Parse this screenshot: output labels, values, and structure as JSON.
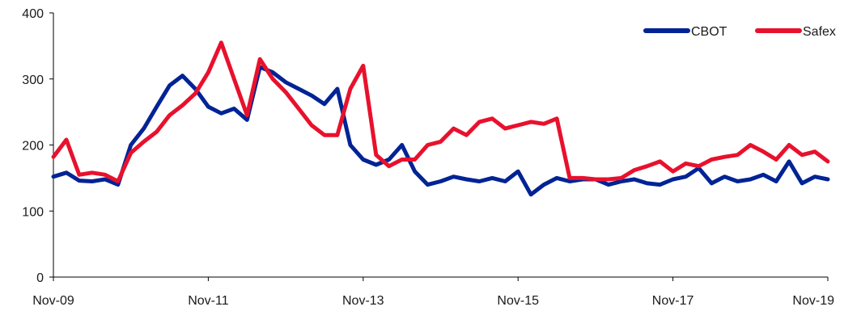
{
  "chart_data": {
    "type": "line",
    "title": "",
    "xlabel": "",
    "ylabel": "",
    "x_ticks": [
      "Nov-09",
      "Nov-11",
      "Nov-13",
      "Nov-15",
      "Nov-17",
      "Nov-19"
    ],
    "y_ticks": [
      "0",
      "100",
      "200",
      "300",
      "400"
    ],
    "xlim": [
      "2009-11",
      "2019-11"
    ],
    "ylim": [
      0,
      400
    ],
    "grid": false,
    "legend_position": "top-right",
    "series": [
      {
        "name": "CBOT",
        "color": "#002395",
        "x": [
          "2009-11",
          "2010-01",
          "2010-03",
          "2010-05",
          "2010-07",
          "2010-09",
          "2010-11",
          "2011-01",
          "2011-03",
          "2011-05",
          "2011-07",
          "2011-09",
          "2011-11",
          "2012-01",
          "2012-03",
          "2012-05",
          "2012-07",
          "2012-09",
          "2012-11",
          "2013-01",
          "2013-03",
          "2013-05",
          "2013-07",
          "2013-09",
          "2013-11",
          "2014-01",
          "2014-03",
          "2014-05",
          "2014-07",
          "2014-09",
          "2014-11",
          "2015-01",
          "2015-03",
          "2015-05",
          "2015-07",
          "2015-09",
          "2015-11",
          "2016-01",
          "2016-03",
          "2016-05",
          "2016-07",
          "2016-09",
          "2016-11",
          "2017-01",
          "2017-03",
          "2017-05",
          "2017-07",
          "2017-09",
          "2017-11",
          "2018-01",
          "2018-03",
          "2018-05",
          "2018-07",
          "2018-09",
          "2018-11",
          "2019-01",
          "2019-03",
          "2019-05",
          "2019-07",
          "2019-09",
          "2019-11"
        ],
        "values": [
          152,
          158,
          146,
          145,
          148,
          140,
          200,
          225,
          258,
          290,
          305,
          285,
          258,
          248,
          255,
          238,
          318,
          310,
          295,
          285,
          275,
          262,
          285,
          200,
          178,
          170,
          178,
          200,
          160,
          140,
          145,
          152,
          148,
          145,
          150,
          145,
          160,
          125,
          140,
          150,
          145,
          148,
          148,
          140,
          145,
          148,
          142,
          140,
          148,
          152,
          165,
          142,
          152,
          145,
          148,
          155,
          145,
          175,
          142,
          152,
          148
        ]
      },
      {
        "name": "Safex",
        "color": "#e8112d",
        "x": [
          "2009-11",
          "2010-01",
          "2010-03",
          "2010-05",
          "2010-07",
          "2010-09",
          "2010-11",
          "2011-01",
          "2011-03",
          "2011-05",
          "2011-07",
          "2011-09",
          "2011-11",
          "2012-01",
          "2012-03",
          "2012-05",
          "2012-07",
          "2012-09",
          "2012-11",
          "2013-01",
          "2013-03",
          "2013-05",
          "2013-07",
          "2013-09",
          "2013-11",
          "2014-01",
          "2014-03",
          "2014-05",
          "2014-07",
          "2014-09",
          "2014-11",
          "2015-01",
          "2015-03",
          "2015-05",
          "2015-07",
          "2015-09",
          "2015-11",
          "2016-01",
          "2016-03",
          "2016-05",
          "2016-07",
          "2016-09",
          "2016-11",
          "2017-01",
          "2017-03",
          "2017-05",
          "2017-07",
          "2017-09",
          "2017-11",
          "2018-01",
          "2018-03",
          "2018-05",
          "2018-07",
          "2018-09",
          "2018-11",
          "2019-01",
          "2019-03",
          "2019-05",
          "2019-07",
          "2019-09",
          "2019-11"
        ],
        "values": [
          182,
          208,
          155,
          158,
          155,
          145,
          188,
          205,
          220,
          245,
          260,
          278,
          310,
          355,
          300,
          245,
          330,
          300,
          280,
          255,
          230,
          215,
          215,
          285,
          320,
          185,
          168,
          178,
          178,
          200,
          205,
          225,
          215,
          235,
          240,
          225,
          230,
          235,
          232,
          240,
          150,
          150,
          148,
          148,
          150,
          162,
          168,
          175,
          160,
          172,
          168,
          178,
          182,
          185,
          200,
          190,
          178,
          200,
          185,
          190,
          175
        ]
      }
    ]
  }
}
